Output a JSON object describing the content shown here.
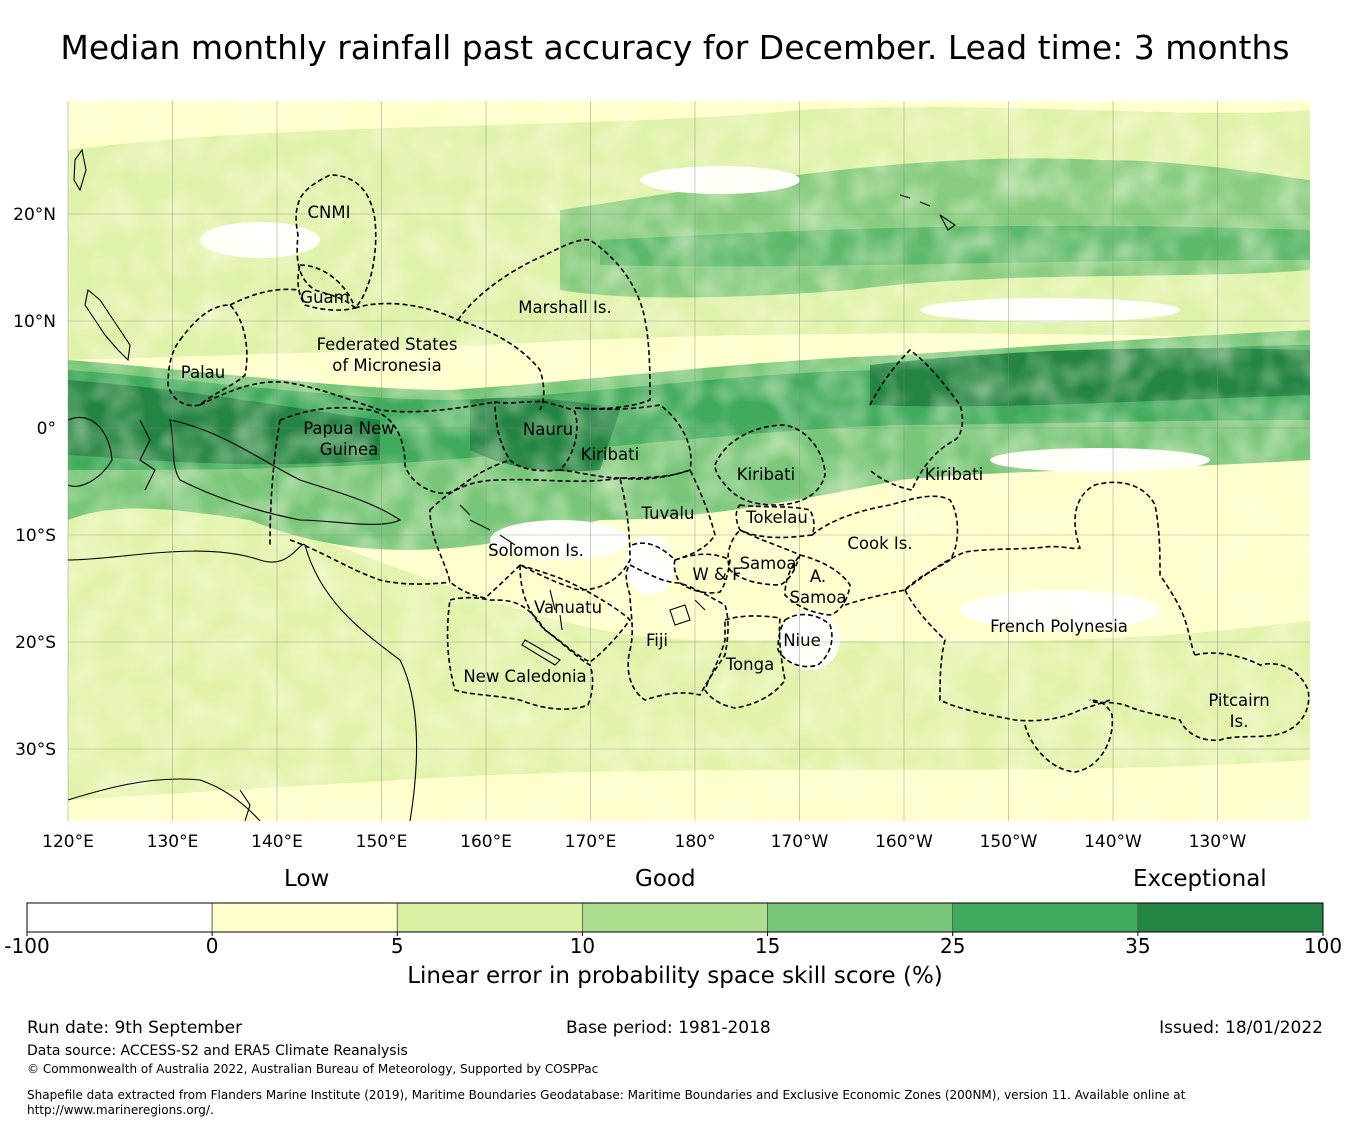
{
  "title": "Median monthly rainfall past accuracy for December. Lead time: 3 months",
  "map": {
    "lat_ticks": [
      "20°N",
      "10°N",
      "0°",
      "10°S",
      "20°S",
      "30°S"
    ],
    "lon_ticks": [
      "120°E",
      "130°E",
      "140°E",
      "150°E",
      "160°E",
      "170°E",
      "180°",
      "170°W",
      "160°W",
      "150°W",
      "140°W",
      "130°W"
    ],
    "regions": [
      {
        "name": "CNMI",
        "lines": [
          "CNMI"
        ]
      },
      {
        "name": "Guam",
        "lines": [
          "Guam"
        ]
      },
      {
        "name": "Marshall Is.",
        "lines": [
          "Marshall Is."
        ]
      },
      {
        "name": "Federated States of Micronesia",
        "lines": [
          "Federated States",
          "of Micronesia"
        ]
      },
      {
        "name": "Palau",
        "lines": [
          "Palau"
        ]
      },
      {
        "name": "Papua New Guinea",
        "lines": [
          "Papua New",
          "Guinea"
        ]
      },
      {
        "name": "Nauru",
        "lines": [
          "Nauru"
        ]
      },
      {
        "name": "Kiribati (Gilbert)",
        "lines": [
          "Kiribati"
        ]
      },
      {
        "name": "Kiribati (Phoenix)",
        "lines": [
          "Kiribati"
        ]
      },
      {
        "name": "Kiribati (Line)",
        "lines": [
          "Kiribati"
        ]
      },
      {
        "name": "Tuvalu",
        "lines": [
          "Tuvalu"
        ]
      },
      {
        "name": "Tokelau",
        "lines": [
          "Tokelau"
        ]
      },
      {
        "name": "Solomon Is.",
        "lines": [
          "Solomon Is."
        ]
      },
      {
        "name": "Cook Is.",
        "lines": [
          "Cook Is."
        ]
      },
      {
        "name": "Samoa",
        "lines": [
          "Samoa"
        ]
      },
      {
        "name": "W & F",
        "lines": [
          "W & F"
        ]
      },
      {
        "name": "A. Samoa",
        "lines": [
          "A.",
          "Samoa"
        ]
      },
      {
        "name": "Vanuatu",
        "lines": [
          "Vanuatu"
        ]
      },
      {
        "name": "French Polynesia",
        "lines": [
          "French Polynesia"
        ]
      },
      {
        "name": "Fiji",
        "lines": [
          "Fiji"
        ]
      },
      {
        "name": "Niue",
        "lines": [
          "Niue"
        ]
      },
      {
        "name": "Tonga",
        "lines": [
          "Tonga"
        ]
      },
      {
        "name": "New Caledonia",
        "lines": [
          "New Caledonia"
        ]
      },
      {
        "name": "Pitcairn Is.",
        "lines": [
          "Pitcairn",
          "Is."
        ]
      }
    ]
  },
  "legend": {
    "categories": [
      "Low",
      "Good",
      "Exceptional"
    ],
    "ticks": [
      "-100",
      "0",
      "5",
      "10",
      "15",
      "25",
      "35",
      "100"
    ],
    "colors": [
      "#ffffff",
      "#ffffcc",
      "#d9f0a3",
      "#addd8e",
      "#78c679",
      "#41ab5d",
      "#238443"
    ],
    "title": "Linear error in probability space skill score (%)"
  },
  "footer": {
    "run_date": "Run date: 9th September",
    "base_period": "Base period: 1981-2018",
    "issued": "Issued: 18/01/2022",
    "data_source": "Data source: ACCESS-S2 and ERA5 Climate Reanalysis",
    "copyright": "© Commonwealth of Australia 2022, Australian Bureau of Meteorology, Supported by COSPPac",
    "shapefile_line1": "Shapefile data extracted from Flanders Marine Institute (2019), Maritime Boundaries Geodatabase: Maritime Boundaries and Exclusive Economic Zones (200NM), version 11. Available online at",
    "shapefile_line2": "http://www.marineregions.org/."
  }
}
